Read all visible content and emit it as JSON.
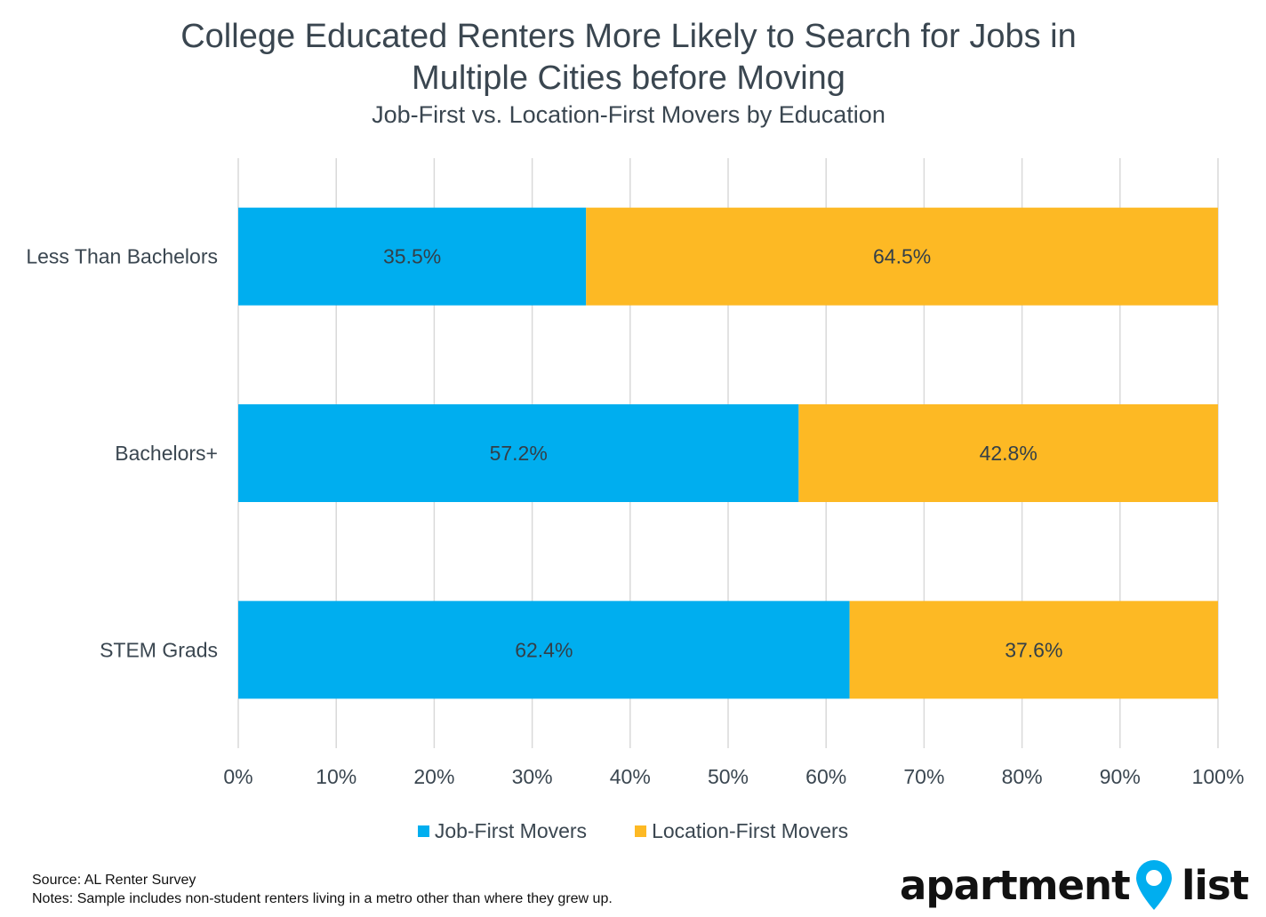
{
  "chart_data": {
    "type": "bar",
    "orientation": "horizontal",
    "stacked": true,
    "title": "College Educated Renters More Likely to Search for Jobs in Multiple Cities before Moving",
    "title_lines": [
      "College Educated Renters More Likely to Search for Jobs in",
      "Multiple Cities before Moving"
    ],
    "subtitle": "Job-First vs. Location-First Movers by Education",
    "categories": [
      "Less Than Bachelors",
      "Bachelors+",
      "STEM Grads"
    ],
    "series": [
      {
        "name": "Job-First Movers",
        "values": [
          35.5,
          57.2,
          62.4
        ],
        "labels": [
          "35.5%",
          "57.2%",
          "62.4%"
        ],
        "color": "#00aeef"
      },
      {
        "name": "Location-First Movers",
        "values": [
          64.5,
          42.8,
          37.6
        ],
        "labels": [
          "64.5%",
          "42.8%",
          "37.6%"
        ],
        "color": "#fdb924"
      }
    ],
    "xlim": [
      0,
      100
    ],
    "xticks": [
      "0%",
      "10%",
      "20%",
      "30%",
      "40%",
      "50%",
      "60%",
      "70%",
      "80%",
      "90%",
      "100%"
    ],
    "grid": true,
    "legend": "bottom"
  },
  "footer": {
    "source": "Source: AL Renter Survey",
    "notes": "Notes: Sample includes non-student renters living in a metro other than where they grew up."
  },
  "logo": {
    "text_left": "apartment",
    "text_right": "list",
    "pin_color": "#00aeef"
  }
}
